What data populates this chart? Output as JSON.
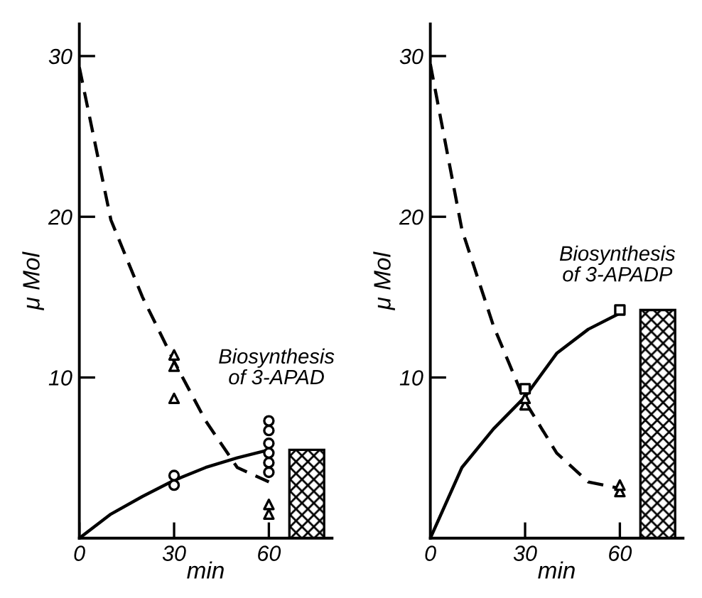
{
  "chart_data": [
    {
      "type": "line",
      "xlabel": "min",
      "ylabel": "μ Mol",
      "xlim": [
        0,
        80
      ],
      "ylim": [
        0,
        32
      ],
      "xticks": [
        0,
        30,
        60
      ],
      "yticks": [
        10,
        20,
        30
      ],
      "grid": false,
      "legend": false,
      "annotations": [
        "Biosynthesis\nof 3-APAD"
      ],
      "series": [
        {
          "line_style": "dashed",
          "color": "#000000",
          "x": [
            0,
            10,
            20,
            30,
            40,
            50,
            60
          ],
          "values": [
            29.3,
            19.8,
            15,
            11,
            7.3,
            4.4,
            3.5
          ]
        },
        {
          "line_style": "solid",
          "color": "#000000",
          "x": [
            0,
            10,
            20,
            30,
            40,
            50,
            60
          ],
          "values": [
            0,
            1.5,
            2.6,
            3.6,
            4.4,
            5.0,
            5.5
          ]
        },
        {
          "type": "scatter",
          "marker": "triangle",
          "color": "#000000",
          "x": [
            30,
            30,
            30,
            60,
            60
          ],
          "values": [
            11.4,
            10.7,
            8.7,
            2.1,
            1.5
          ]
        },
        {
          "type": "scatter",
          "marker": "circle",
          "color": "#000000",
          "x": [
            30,
            30,
            60,
            60,
            60,
            60,
            60,
            60
          ],
          "values": [
            3.9,
            3.3,
            7.3,
            6.7,
            5.9,
            5.3,
            4.7,
            4.1
          ]
        },
        {
          "type": "bar",
          "color": "#000000",
          "x": [
            72
          ],
          "values": [
            5.5
          ]
        }
      ]
    },
    {
      "type": "line",
      "xlabel": "min",
      "ylabel": "μ Mol",
      "xlim": [
        0,
        80
      ],
      "ylim": [
        0,
        32
      ],
      "xticks": [
        0,
        30,
        60
      ],
      "yticks": [
        10,
        20,
        30
      ],
      "grid": false,
      "legend": false,
      "annotations": [
        "Biosynthesis\nof 3-APADP"
      ],
      "series": [
        {
          "line_style": "dashed",
          "color": "#000000",
          "x": [
            0,
            10,
            20,
            30,
            40,
            50,
            60
          ],
          "values": [
            29.5,
            19.2,
            13.2,
            8.5,
            5.3,
            3.5,
            3.1
          ]
        },
        {
          "line_style": "solid",
          "color": "#000000",
          "x": [
            0,
            10,
            20,
            30,
            40,
            50,
            60
          ],
          "values": [
            0,
            4.4,
            6.8,
            8.8,
            11.5,
            13.0,
            14.0
          ]
        },
        {
          "type": "scatter",
          "marker": "triangle",
          "color": "#000000",
          "x": [
            30,
            30,
            60,
            60
          ],
          "values": [
            8.3,
            8.7,
            2.9,
            3.3
          ]
        },
        {
          "type": "scatter",
          "marker": "square",
          "color": "#000000",
          "x": [
            30,
            60
          ],
          "values": [
            9.3,
            14.2
          ]
        },
        {
          "type": "bar",
          "color": "#000000",
          "x": [
            72
          ],
          "values": [
            14.2
          ]
        }
      ]
    }
  ]
}
